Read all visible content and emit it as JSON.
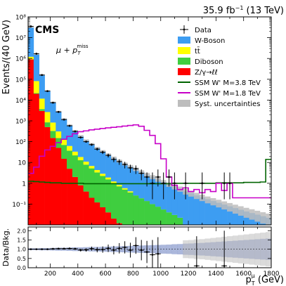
{
  "header": {
    "lumi_main": "35.9 fb",
    "lumi_exp": "−1",
    "lumi_tail": " (13 TeV)",
    "experiment": "CMS",
    "channel_mu": "μ + p",
    "channel_sub": "T",
    "channel_sup": "miss"
  },
  "colors": {
    "wboson": "#3d9df2",
    "ttbar": "#ffff00",
    "diboson": "#3fce3f",
    "dy": "#ff0000",
    "ssm38": "#006400",
    "ssm18": "#c800c8",
    "syst": "#bdbdbd",
    "ratio_band": "#8f9fcf"
  },
  "chart_data": {
    "type": "bar",
    "main": {
      "ylabel": "Events/(40 GeV)",
      "ylim": [
        0.01,
        100000000
      ],
      "log_y": true,
      "y_tick_labels": [
        "10⁻¹",
        "1",
        "10",
        "10²",
        "10³",
        "10⁴",
        "10⁵",
        "10⁶",
        "10⁷",
        "10⁸"
      ],
      "y_tick_values": [
        0.1,
        1,
        10,
        100,
        1000,
        10000,
        100000,
        1000000,
        10000000,
        100000000
      ],
      "bin_width": 40,
      "bin_low_edges": [
        40,
        80,
        120,
        160,
        200,
        240,
        280,
        320,
        360,
        400,
        440,
        480,
        520,
        560,
        600,
        640,
        680,
        720,
        760,
        800,
        840,
        880,
        920,
        960,
        1000,
        1040,
        1080,
        1120,
        1160,
        1200,
        1240,
        1280,
        1320,
        1360,
        1400,
        1440,
        1480,
        1520,
        1560,
        1600,
        1640,
        1680,
        1720,
        1760
      ],
      "stack_order_bottom_to_top": [
        "dy",
        "diboson",
        "ttbar",
        "wboson"
      ],
      "series": [
        {
          "name": "Z/γ→ℓℓ",
          "key": "dy",
          "values": [
            900000,
            20000,
            3000,
            500,
            150,
            50,
            15,
            5,
            2,
            0.8,
            0.4,
            0.2,
            0.12,
            0.07,
            0.04,
            0.02,
            0.012,
            0,
            0,
            0,
            0,
            0,
            0,
            0,
            0,
            0,
            0,
            0,
            0,
            0,
            0,
            0,
            0,
            0,
            0,
            0,
            0,
            0,
            0,
            0,
            0,
            0,
            0,
            0
          ]
        },
        {
          "name": "Diboson",
          "key": "diboson",
          "values": [
            6000,
            1500,
            700,
            350,
            180,
            100,
            55,
            32,
            20,
            12,
            7.5,
            5,
            3.2,
            2.2,
            1.5,
            1.0,
            0.7,
            0.5,
            0.36,
            0.26,
            0.19,
            0.14,
            0.1,
            0.075,
            0.055,
            0.04,
            0.03,
            0.022,
            0,
            0,
            0,
            0,
            0,
            0,
            0,
            0,
            0,
            0,
            0,
            0,
            0,
            0,
            0,
            0
          ]
        },
        {
          "name": "tt̄",
          "key": "ttbar",
          "values": [
            300000,
            60000,
            8000,
            1800,
            500,
            160,
            60,
            25,
            11,
            5.5,
            3,
            1.6,
            1,
            0.6,
            0.35,
            0.2,
            0.12,
            0.08,
            0.05,
            0,
            0,
            0,
            0,
            0,
            0,
            0,
            0,
            0,
            0,
            0,
            0,
            0,
            0,
            0,
            0,
            0,
            0,
            0,
            0,
            0,
            0,
            0,
            0,
            0
          ]
        },
        {
          "name": "W-Boson",
          "key": "wboson",
          "values": [
            30000000,
            1500000,
            150000,
            25000,
            7000,
            2500,
            1100,
            550,
            300,
            170,
            105,
            70,
            46,
            32,
            22,
            15.5,
            11,
            8,
            6,
            4.5,
            3.3,
            2.5,
            1.9,
            1.45,
            1.1,
            0.85,
            0.66,
            0.52,
            0.41,
            0.33,
            0.26,
            0.21,
            0.17,
            0.14,
            0.115,
            0.095,
            0.078,
            0.064,
            0.053,
            0.044,
            0.037,
            0.031,
            0.026,
            0.022
          ]
        }
      ],
      "data_points": {
        "name": "Data",
        "x": [
          60,
          100,
          140,
          180,
          220,
          260,
          300,
          340,
          380,
          420,
          460,
          500,
          540,
          580,
          620,
          660,
          700,
          740,
          780,
          820,
          860,
          900,
          940,
          980,
          1020,
          1060,
          1100,
          1180,
          1300,
          1460,
          1500
        ],
        "y": [
          35000000,
          1700000,
          160000,
          27000,
          7500,
          2700,
          1150,
          580,
          310,
          160,
          100,
          72,
          44,
          31,
          22,
          14,
          11,
          8,
          5.5,
          5,
          3,
          2,
          1,
          2,
          1,
          2,
          1,
          1,
          1,
          1,
          1
        ],
        "err_low": [
          6000,
          1300,
          400,
          160,
          85,
          52,
          34,
          24,
          17.6,
          12.6,
          10,
          8.5,
          6.6,
          5.6,
          4.7,
          3.7,
          3.3,
          2.8,
          2.3,
          2.2,
          1.6,
          1.3,
          0.83,
          1.3,
          0.83,
          1.3,
          0.83,
          0.83,
          0.83,
          0.83,
          0.83
        ],
        "err_high": [
          6000,
          1300,
          400,
          160,
          85,
          52,
          34,
          24,
          17.6,
          12.6,
          10,
          8.5,
          6.6,
          5.6,
          4.7,
          3.7,
          3.3,
          2.8,
          2.3,
          2.2,
          1.6,
          1.3,
          2.3,
          2.6,
          2.3,
          2.6,
          2.3,
          2.3,
          2.3,
          2.3,
          2.3
        ]
      },
      "signals": [
        {
          "name": "SSM W' M=3.8 TeV",
          "key": "ssm38",
          "values": [
            1.25,
            1.2,
            1.15,
            1.1,
            1.05,
            1.05,
            1.0,
            1.0,
            1.0,
            1.0,
            0.95,
            0.95,
            0.95,
            0.95,
            0.95,
            0.95,
            0.95,
            0.95,
            0.95,
            0.95,
            0.95,
            0.95,
            0.95,
            0.95,
            0.95,
            0.95,
            1.0,
            1.0,
            1.0,
            1.0,
            1.0,
            1.0,
            1.0,
            1.0,
            1.05,
            1.05,
            1.05,
            1.05,
            1.05,
            1.1,
            1.1,
            1.1,
            1.15,
            14
          ]
        },
        {
          "name": "SSM W' M=1.8 TeV",
          "key": "ssm18",
          "values": [
            3,
            6,
            20,
            40,
            60,
            90,
            130,
            180,
            240,
            300,
            330,
            370,
            400,
            430,
            460,
            490,
            520,
            560,
            600,
            640,
            550,
            350,
            200,
            80,
            15,
            2,
            0.8,
            0.5,
            0.6,
            0.4,
            0.5,
            0.35,
            0.5,
            0.4,
            1,
            0.45,
            1,
            0.2,
            0.2,
            0.2,
            0.2,
            0.2,
            0.2,
            0.2
          ]
        }
      ],
      "syst_rel_unc": [
        0.05,
        0.05,
        0.06,
        0.06,
        0.07,
        0.08,
        0.08,
        0.09,
        0.1,
        0.1,
        0.11,
        0.12,
        0.12,
        0.13,
        0.14,
        0.15,
        0.16,
        0.17,
        0.18,
        0.19,
        0.2,
        0.21,
        0.22,
        0.23,
        0.24,
        0.25,
        0.27,
        0.28,
        0.3,
        0.31,
        0.33,
        0.34,
        0.36,
        0.38,
        0.4,
        0.42,
        0.44,
        0.46,
        0.48,
        0.5,
        0.52,
        0.54,
        0.56,
        0.58
      ],
      "legend": {
        "placement": "top-right",
        "entries": [
          {
            "label": "Data",
            "kind": "data"
          },
          {
            "label": "W-Boson",
            "kind": "fill",
            "key": "wboson"
          },
          {
            "label": "tt̄",
            "kind": "fill",
            "key": "ttbar"
          },
          {
            "label": "Diboson",
            "kind": "fill",
            "key": "diboson"
          },
          {
            "label": "Z/γ→ℓℓ",
            "kind": "fill",
            "key": "dy"
          },
          {
            "label": "SSM W' M=3.8 TeV",
            "kind": "line",
            "key": "ssm38"
          },
          {
            "label": "SSM W' M=1.8 TeV",
            "kind": "line",
            "key": "ssm18"
          },
          {
            "label": "Syst. uncertainties",
            "kind": "fill",
            "key": "syst"
          }
        ]
      }
    },
    "ratio": {
      "ylabel": "Data/Bkg.",
      "ylim": [
        0,
        2.2
      ],
      "y_tick_labels": [
        "0.0",
        "0.5",
        "1.0",
        "1.5",
        "2.0"
      ],
      "y_tick_values": [
        0,
        0.5,
        1.0,
        1.5,
        2.0
      ],
      "x": [
        60,
        100,
        140,
        180,
        220,
        260,
        300,
        340,
        380,
        420,
        460,
        500,
        540,
        580,
        620,
        660,
        700,
        740,
        780,
        820,
        860,
        900,
        940,
        980,
        1260,
        1460
      ],
      "y": [
        1.0,
        1.0,
        1.0,
        1.0,
        1.02,
        1.03,
        1.03,
        1.04,
        1.02,
        0.95,
        0.96,
        1.03,
        0.97,
        0.98,
        1.05,
        0.95,
        1.05,
        1.1,
        0.95,
        1.2,
        0.95,
        0.85,
        0.7,
        0.75,
        0.1,
        0.1
      ],
      "err": [
        0.01,
        0.01,
        0.01,
        0.01,
        0.02,
        0.02,
        0.03,
        0.04,
        0.05,
        0.07,
        0.09,
        0.11,
        0.14,
        0.17,
        0.2,
        0.23,
        0.28,
        0.33,
        0.4,
        0.45,
        0.55,
        0.6,
        0.8,
        0.9,
        1.6,
        1.9
      ],
      "band_rel_unc": [
        0.05,
        0.05,
        0.06,
        0.06,
        0.07,
        0.08,
        0.08,
        0.09,
        0.1,
        0.1,
        0.11,
        0.12,
        0.12,
        0.13,
        0.14,
        0.15,
        0.16,
        0.17,
        0.18,
        0.19,
        0.2,
        0.21,
        0.22,
        0.23,
        0.24,
        0.25,
        0.27,
        0.28,
        0.3,
        0.31,
        0.33,
        0.34,
        0.36,
        0.38,
        0.4,
        0.42,
        0.44,
        0.46,
        0.48,
        0.5,
        0.52,
        0.54,
        0.56,
        0.58
      ]
    },
    "xaxis": {
      "xlim": [
        40,
        1800
      ],
      "x_tick_labels": [
        "200",
        "400",
        "600",
        "800",
        "1000",
        "1200",
        "1400",
        "1600",
        "1800"
      ],
      "x_tick_values": [
        200,
        400,
        600,
        800,
        1000,
        1200,
        1400,
        1600,
        1800
      ],
      "xlabel_main": "p",
      "xlabel_sub": "T",
      "xlabel_sup": "μ",
      "xlabel_unit": " (GeV)"
    }
  }
}
